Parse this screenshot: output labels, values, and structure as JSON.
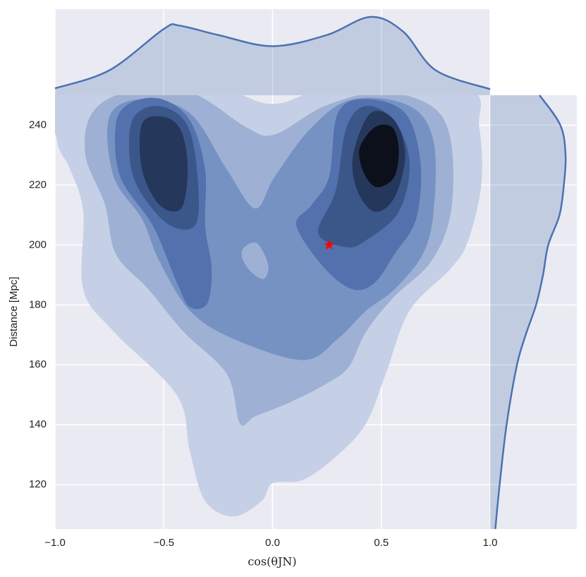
{
  "chart_data": {
    "type": "contour",
    "xlabel": "cos(θJN)",
    "ylabel": "Distance [Mpc]",
    "xlim": [
      -1,
      1
    ],
    "ylim": [
      105.2,
      250
    ],
    "xticks": [
      {
        "value": -1,
        "label": "−1.0"
      },
      {
        "value": -0.5,
        "label": "−0.5"
      },
      {
        "value": 0,
        "label": "0.0"
      },
      {
        "value": 0.5,
        "label": "0.5"
      },
      {
        "value": 1,
        "label": "1.0"
      }
    ],
    "yticks": [
      120,
      140,
      160,
      180,
      200,
      220,
      240
    ],
    "grid": true,
    "background": "#eaeaf2",
    "grid_color": "#ffffff",
    "contours": [
      {
        "color": "#c5d0e6",
        "polygons": [
          {
            "x": [
              -0.98,
              -0.99,
              -0.93,
              -0.87,
              -0.87,
              -0.73,
              -0.44,
              -0.38,
              -0.31,
              -0.18,
              -0.05,
              0.0,
              0.14,
              0.3,
              0.43,
              0.52,
              0.63,
              0.82,
              0.9,
              0.96,
              0.95,
              0.89,
              0.27,
              0.0,
              -0.28
            ],
            "y": [
              252,
              234.6,
              225.2,
              211.1,
              185.2,
              171.1,
              149.9,
              131.1,
              114.6,
              109.4,
              114.6,
              120.5,
              121.6,
              129.9,
              140.5,
              156.9,
              178.1,
              192.2,
              201.6,
              220.5,
              239.3,
              252,
              252,
              247.1,
              252
            ]
          }
        ]
      },
      {
        "color": "#9eb0d3",
        "polygons": [
          {
            "x": [
              -0.83,
              -0.86,
              -0.77,
              -0.72,
              -0.57,
              -0.41,
              -0.21,
              -0.15,
              -0.08,
              0.08,
              0.24,
              0.35,
              0.43,
              0.56,
              0.73,
              0.82,
              0.82,
              0.73,
              0.5,
              0.24,
              0.01,
              -0.12,
              -0.38,
              -0.67
            ],
            "y": [
              244.0,
              229.9,
              213.4,
              196.9,
              185.2,
              171.1,
              156.9,
              140.5,
              142.8,
              147.5,
              153.4,
              159.3,
              171.1,
              182.8,
              194.6,
              211.1,
              234.6,
              246.4,
              251,
              246.4,
              236.9,
              239.3,
              251,
              251
            ]
          }
        ]
      },
      {
        "color": "#7592c3",
        "polygons": [
          {
            "x": [
              -0.75,
              -0.73,
              -0.6,
              -0.52,
              -0.38,
              -0.18,
              0.14,
              0.3,
              0.43,
              0.56,
              0.69,
              0.74,
              0.74,
              0.63,
              0.37,
              0.18,
              0.01,
              -0.08,
              -0.21,
              -0.38,
              -0.6
            ],
            "y": [
              242.8,
              222.8,
              208.7,
              194.6,
              178.1,
              168.7,
              161.6,
              168.7,
              178.1,
              185.2,
              196.9,
              211.1,
              234.6,
              246.4,
              248.7,
              239.3,
              222.8,
              212.2,
              225.2,
              244.0,
              248.7
            ]
          }
        ]
      },
      {
        "color": "#9eb0d3",
        "polygons": [
          {
            "x": [
              -0.13,
              -0.07,
              -0.02,
              -0.04,
              -0.1,
              -0.14
            ],
            "y": [
              199.3,
              200.5,
              193.4,
              188.7,
              191.1,
              195.8
            ]
          }
        ]
      },
      {
        "color": "#5271ad",
        "polygons": [
          {
            "x": [
              -0.72,
              -0.7,
              -0.55,
              -0.44,
              -0.38,
              -0.3,
              -0.28,
              -0.31,
              -0.31,
              -0.38,
              -0.51,
              -0.65
            ],
            "y": [
              240.5,
              222.8,
              206.4,
              187.5,
              179.3,
              180.5,
              192.2,
              206.4,
              225.2,
              241.6,
              248.7,
              247.5
            ]
          },
          {
            "x": [
              0.18,
              0.11,
              0.24,
              0.37,
              0.47,
              0.56,
              0.66,
              0.68,
              0.61,
              0.43,
              0.3,
              0.26
            ],
            "y": [
              213.4,
              206.4,
              192.2,
              185.2,
              187.5,
              196.9,
              208.7,
              227.5,
              244.0,
              248.7,
              244.0,
              222.8
            ]
          }
        ]
      },
      {
        "color": "#3b5789",
        "polygons": [
          {
            "x": [
              -0.65,
              -0.64,
              -0.51,
              -0.39,
              -0.34,
              -0.36,
              -0.42,
              -0.55
            ],
            "y": [
              240.5,
              222.8,
              208.7,
              205.2,
              211.1,
              232.2,
              242.8,
              246.4
            ]
          },
          {
            "x": [
              0.21,
              0.34,
              0.43,
              0.58,
              0.63,
              0.56,
              0.43,
              0.34,
              0.29
            ],
            "y": [
              204.0,
              199.3,
              201.6,
              211.1,
              227.5,
              241.6,
              246.4,
              239.3,
              218.1
            ]
          }
        ]
      },
      {
        "color": "#26375c",
        "polygons": [
          {
            "x": [
              -0.6,
              -0.6,
              -0.52,
              -0.42,
              -0.39,
              -0.42,
              -0.5
            ],
            "y": [
              240.5,
              225.2,
              213.4,
              212.2,
              225.2,
              238.1,
              242.8
            ]
          },
          {
            "x": [
              0.37,
              0.39,
              0.47,
              0.56,
              0.61,
              0.56,
              0.45
            ],
            "y": [
              229.9,
              218.1,
              211.1,
              215.8,
              229.9,
              241.6,
              244.0
            ]
          }
        ]
      },
      {
        "color": "#0b101b",
        "polygons": [
          {
            "x": [
              0.4,
              0.42,
              0.48,
              0.56,
              0.58,
              0.55,
              0.47
            ],
            "y": [
              232.2,
              224.0,
              219.3,
              222.8,
              232.2,
              239.3,
              239.3
            ]
          }
        ]
      }
    ],
    "marginal_x": {
      "color": "#4c72b0",
      "ylim": [
        0,
        1
      ],
      "x": [
        -1.0,
        -0.75,
        -0.5,
        -0.43,
        -0.25,
        0.0,
        0.25,
        0.45,
        0.6,
        0.75,
        1.0
      ],
      "density": [
        0.08,
        0.29,
        0.77,
        0.81,
        0.7,
        0.57,
        0.7,
        0.91,
        0.74,
        0.29,
        0.07
      ]
    },
    "marginal_y": {
      "color": "#4c72b0",
      "xlim": [
        0,
        1
      ],
      "y": [
        250,
        240,
        230,
        220,
        210,
        200,
        190,
        180,
        170,
        160,
        140,
        120,
        105.2
      ],
      "density": [
        0.57,
        0.81,
        0.87,
        0.85,
        0.8,
        0.67,
        0.61,
        0.53,
        0.41,
        0.31,
        0.19,
        0.11,
        0.06
      ]
    },
    "point": {
      "x": 0.26,
      "y": 200,
      "color": "#ff0000",
      "marker": "star"
    }
  }
}
